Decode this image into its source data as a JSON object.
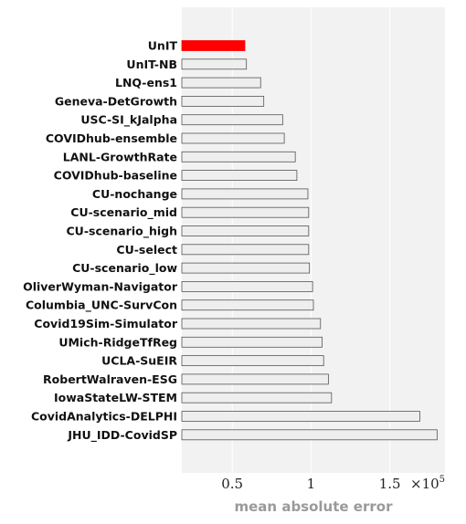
{
  "chart_data": {
    "type": "bar",
    "orientation": "horizontal",
    "categories": [
      "UnIT",
      "UnIT-NB",
      "LNQ-ens1",
      "Geneva-DetGrowth",
      "USC-SI_kJalpha",
      "COVIDhub-ensemble",
      "LANL-GrowthRate",
      "COVIDhub-baseline",
      "CU-nochange",
      "CU-scenario_mid",
      "CU-scenario_high",
      "CU-select",
      "CU-scenario_low",
      "OliverWyman-Navigator",
      "Columbia_UNC-SurvCon",
      "Covid19Sim-Simulator",
      "UMich-RidgeTfReg",
      "UCLA-SuEIR",
      "RobertWalraven-ESG",
      "IowaStateLW-STEM",
      "CovidAnalytics-DELPHI",
      "JHU_IDD-CovidSP"
    ],
    "values": [
      58000,
      59000,
      68000,
      70000,
      82000,
      83000,
      90000,
      91000,
      98000,
      98500,
      98500,
      98500,
      99000,
      101000,
      101500,
      106000,
      107000,
      108000,
      111000,
      113000,
      169000,
      180000
    ],
    "highlight_index": 0,
    "xlabel": "mean absolute error",
    "ylabel": "",
    "title": "",
    "xlim": [
      18000,
      185000
    ],
    "xticks": [
      50000,
      100000,
      150000
    ],
    "xtick_labels": [
      "0.5",
      "1",
      "1.5"
    ],
    "x_multiplier": {
      "base": "×10",
      "exponent": "5"
    },
    "grid": true,
    "legend": "none"
  },
  "colors": {
    "highlight": "#ff0000",
    "bar_fill": "#eeeeee",
    "bar_stroke": "#555555",
    "plot_background": "#f2f2f2",
    "grid": "#ffffff",
    "axis_label": "#9a9a9a"
  }
}
